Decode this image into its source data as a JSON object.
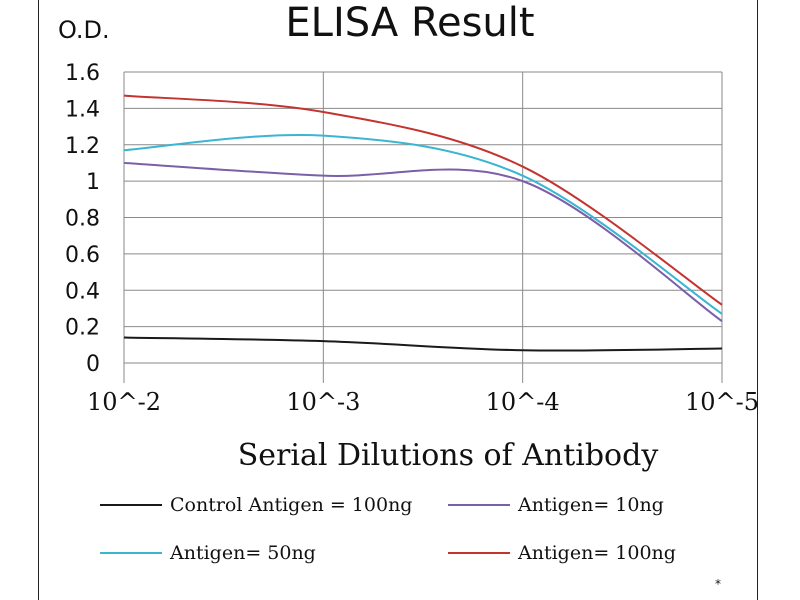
{
  "chart_data": {
    "type": "line",
    "title": "ELISA Result",
    "ylabel": "O.D.",
    "xlabel": "Serial Dilutions  of Antibody",
    "categories": [
      "10^-2",
      "10^-3",
      "10^-4",
      "10^-5"
    ],
    "yticks": [
      "0",
      "0.2",
      "0.4",
      "0.6",
      "0.8",
      "1",
      "1.2",
      "1.4",
      "1.6"
    ],
    "ylim": [
      0,
      1.6
    ],
    "grid": "vertical and horizontal",
    "legend_position": "bottom",
    "series": [
      {
        "name": "Control Antigen = 100ng",
        "color": "#1a1a1a",
        "values": [
          0.14,
          0.12,
          0.07,
          0.08
        ]
      },
      {
        "name": "Antigen= 10ng",
        "color": "#7b5fa8",
        "values": [
          1.1,
          1.03,
          1.0,
          0.23
        ]
      },
      {
        "name": "Antigen= 50ng",
        "color": "#3bb5d1",
        "values": [
          1.17,
          1.25,
          1.03,
          0.27
        ]
      },
      {
        "name": "Antigen= 100ng",
        "color": "#c4342f",
        "values": [
          1.47,
          1.38,
          1.08,
          0.32
        ]
      }
    ],
    "annotation": "*"
  }
}
